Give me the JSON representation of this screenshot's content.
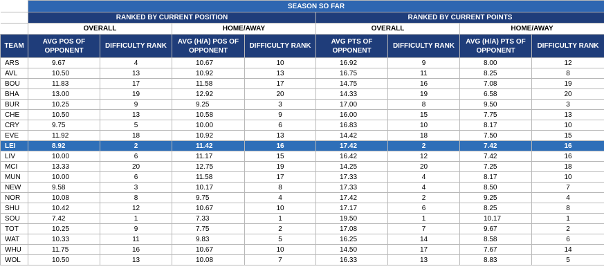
{
  "title": "SEASON SO FAR",
  "groups": [
    "RANKED BY CURRENT POSITION",
    "RANKED BY CURRENT POINTS"
  ],
  "subgroups": [
    "OVERALL",
    "HOME/AWAY",
    "OVERALL",
    "HOME/AWAY"
  ],
  "columns": [
    "TEAM",
    "AVG POS OF OPPONENT",
    "DIFFICULTY RANK",
    "AVG (H/A) POS OF OPPONENT",
    "DIFFICULTY RANK",
    "AVG PTS OF OPPONENT",
    "DIFFICULTY RANK",
    "AVG (H/A) PTS OF OPPONENT",
    "DIFFICULTY RANK"
  ],
  "highlight_team": "LEI",
  "colors": {
    "banner": "#2e66b1",
    "header": "#1f3d7a",
    "highlight": "#2f6fb8"
  },
  "rows": [
    [
      "ARS",
      "9.67",
      "4",
      "10.67",
      "10",
      "16.92",
      "9",
      "8.00",
      "12"
    ],
    [
      "AVL",
      "10.50",
      "13",
      "10.92",
      "13",
      "16.75",
      "11",
      "8.25",
      "8"
    ],
    [
      "BOU",
      "11.83",
      "17",
      "11.58",
      "17",
      "14.75",
      "16",
      "7.08",
      "19"
    ],
    [
      "BHA",
      "13.00",
      "19",
      "12.92",
      "20",
      "14.33",
      "19",
      "6.58",
      "20"
    ],
    [
      "BUR",
      "10.25",
      "9",
      "9.25",
      "3",
      "17.00",
      "8",
      "9.50",
      "3"
    ],
    [
      "CHE",
      "10.50",
      "13",
      "10.58",
      "9",
      "16.00",
      "15",
      "7.75",
      "13"
    ],
    [
      "CRY",
      "9.75",
      "5",
      "10.00",
      "6",
      "16.83",
      "10",
      "8.17",
      "10"
    ],
    [
      "EVE",
      "11.92",
      "18",
      "10.92",
      "13",
      "14.42",
      "18",
      "7.50",
      "15"
    ],
    [
      "LEI",
      "8.92",
      "2",
      "11.42",
      "16",
      "17.42",
      "2",
      "7.42",
      "16"
    ],
    [
      "LIV",
      "10.00",
      "6",
      "11.17",
      "15",
      "16.42",
      "12",
      "7.42",
      "16"
    ],
    [
      "MCI",
      "13.33",
      "20",
      "12.75",
      "19",
      "14.25",
      "20",
      "7.25",
      "18"
    ],
    [
      "MUN",
      "10.00",
      "6",
      "11.58",
      "17",
      "17.33",
      "4",
      "8.17",
      "10"
    ],
    [
      "NEW",
      "9.58",
      "3",
      "10.17",
      "8",
      "17.33",
      "4",
      "8.50",
      "7"
    ],
    [
      "NOR",
      "10.08",
      "8",
      "9.75",
      "4",
      "17.42",
      "2",
      "9.25",
      "4"
    ],
    [
      "SHU",
      "10.42",
      "12",
      "10.67",
      "10",
      "17.17",
      "6",
      "8.25",
      "8"
    ],
    [
      "SOU",
      "7.42",
      "1",
      "7.33",
      "1",
      "19.50",
      "1",
      "10.17",
      "1"
    ],
    [
      "TOT",
      "10.25",
      "9",
      "7.75",
      "2",
      "17.08",
      "7",
      "9.67",
      "2"
    ],
    [
      "WAT",
      "10.33",
      "11",
      "9.83",
      "5",
      "16.25",
      "14",
      "8.58",
      "6"
    ],
    [
      "WHU",
      "11.75",
      "16",
      "10.67",
      "10",
      "14.50",
      "17",
      "7.67",
      "14"
    ],
    [
      "WOL",
      "10.50",
      "13",
      "10.08",
      "7",
      "16.33",
      "13",
      "8.83",
      "5"
    ]
  ]
}
